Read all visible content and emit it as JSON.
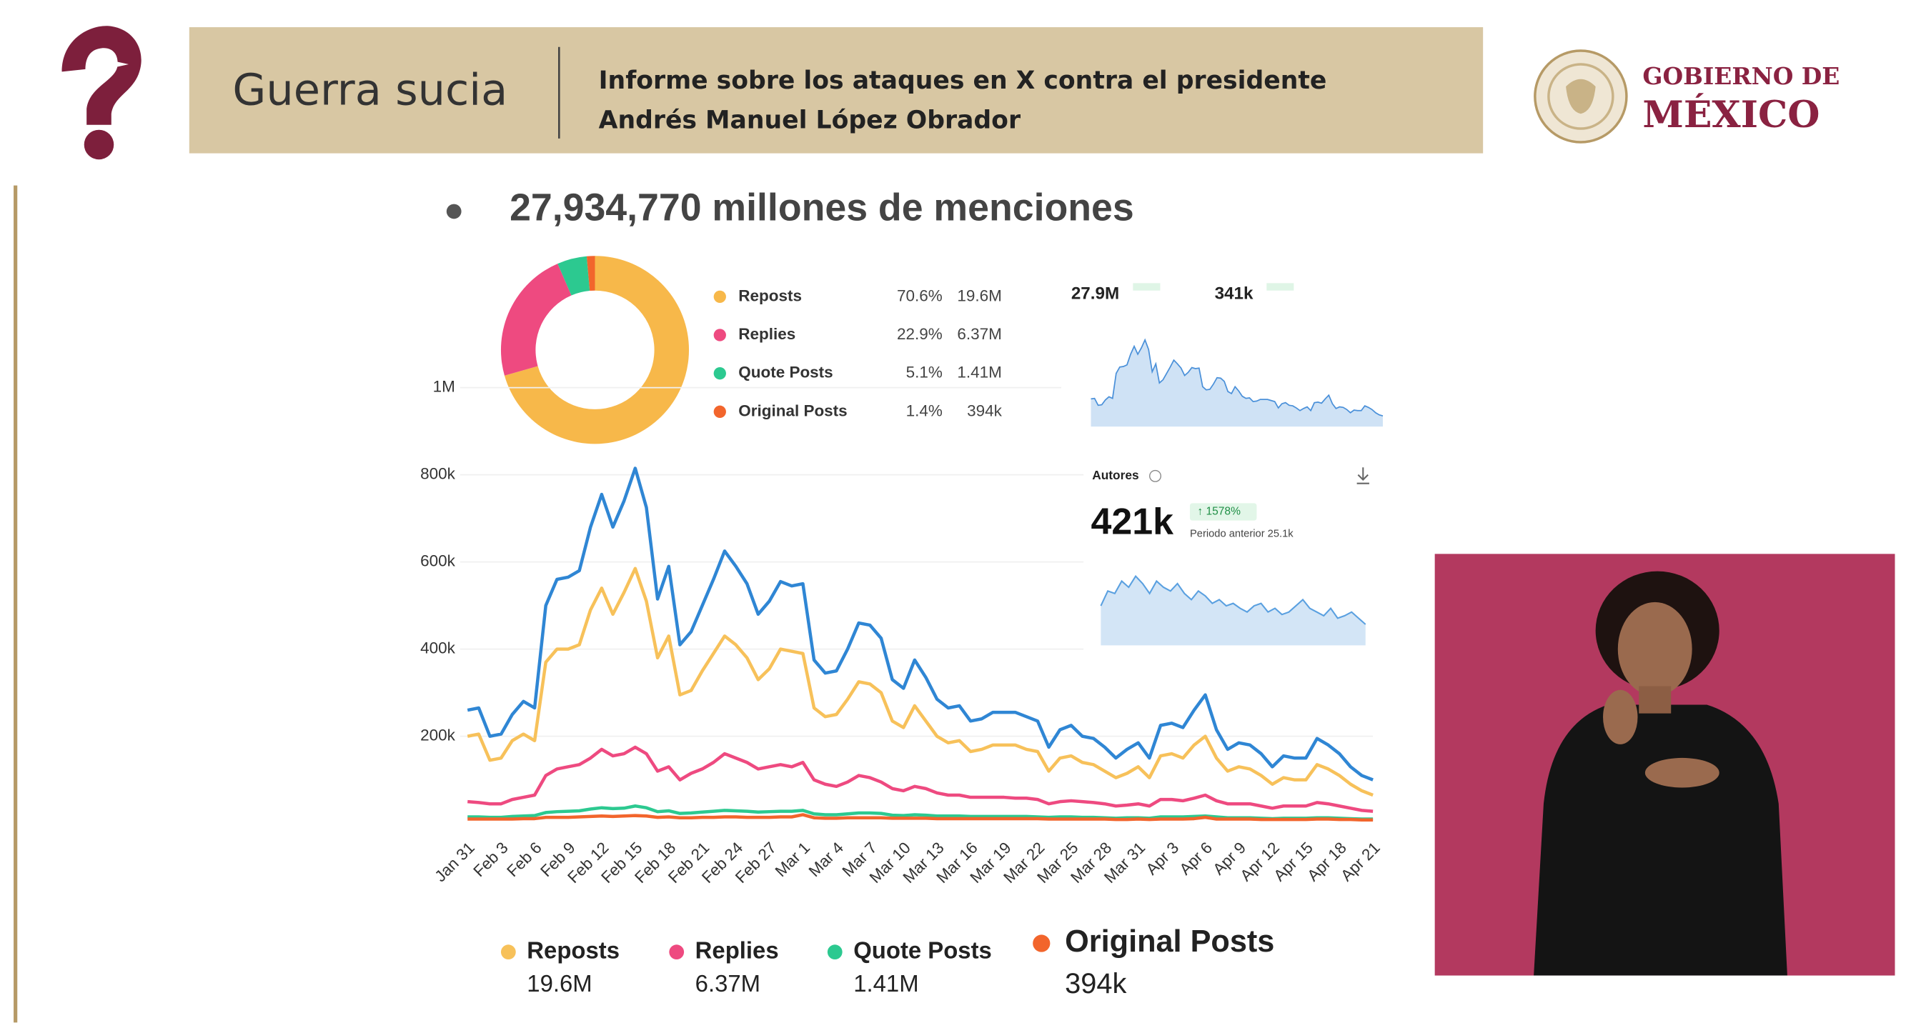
{
  "header": {
    "section": "Guerra sucia",
    "lines": [
      "Informe sobre los ataques en X contra el presidente",
      "Andrés Manuel López Obrador"
    ]
  },
  "logo": {
    "line1": "GOBIERNO DE",
    "line2": "MÉXICO"
  },
  "heading": "27,934,770 millones de menciones",
  "summary": {
    "mentions": "27.9M",
    "daily_average": "341k"
  },
  "authors": {
    "label": "Autores",
    "total": "421k",
    "change": "↑ 1578%",
    "previous": "Periodo anterior 25.1k"
  },
  "chart_data": [
    {
      "type": "pie",
      "donut": true,
      "categories": [
        "Reposts",
        "Replies",
        "Quote Posts",
        "Original Posts"
      ],
      "values": [
        70.6,
        22.9,
        5.1,
        1.4
      ],
      "value_labels": [
        "70.6%",
        "22.9%",
        "5.1%",
        "1.4%"
      ],
      "totals": [
        "19.6M",
        "6.37M",
        "1.41M",
        "394k"
      ],
      "colors": [
        "#f7b84a",
        "#ee4a80",
        "#2cc990",
        "#f2652c"
      ]
    },
    {
      "type": "line",
      "legend": "bottom",
      "grid": true,
      "ylim": [
        0,
        1000000
      ],
      "yticks": [
        {
          "value": 200000,
          "label": "200k"
        },
        {
          "value": 400000,
          "label": "400k"
        },
        {
          "value": 600000,
          "label": "600k"
        },
        {
          "value": 800000,
          "label": "800k"
        },
        {
          "value": 1000000,
          "label": "1M"
        }
      ],
      "categories": [
        "Jan 31",
        null,
        null,
        "Feb 3",
        null,
        null,
        "Feb 6",
        null,
        null,
        "Feb 9",
        null,
        null,
        "Feb 12",
        null,
        null,
        "Feb 15",
        null,
        null,
        "Feb 18",
        null,
        null,
        "Feb 21",
        null,
        null,
        "Feb 24",
        null,
        null,
        "Feb 27",
        null,
        null,
        "Mar 1",
        null,
        null,
        "Mar 4",
        null,
        null,
        "Mar 7",
        null,
        null,
        "Mar 10",
        null,
        null,
        "Mar 13",
        null,
        null,
        "Mar 16",
        null,
        null,
        "Mar 19",
        null,
        null,
        "Mar 22",
        null,
        null,
        "Mar 25",
        null,
        null,
        "Mar 28",
        null,
        null,
        "Mar 31",
        null,
        null,
        "Apr 3",
        null,
        null,
        "Apr 6",
        null,
        null,
        "Apr 9",
        null,
        null,
        "Apr 12",
        null,
        null,
        "Apr 15",
        null,
        null,
        "Apr 18",
        null,
        null,
        "Apr 21"
      ],
      "series": [
        {
          "name": "Reposts",
          "color": "#f7c15a",
          "values": [
            200000,
            205000,
            145000,
            150000,
            190000,
            205000,
            190000,
            370000,
            400000,
            400000,
            410000,
            490000,
            540000,
            480000,
            530000,
            585000,
            510000,
            380000,
            430000,
            295000,
            305000,
            350000,
            390000,
            430000,
            410000,
            380000,
            330000,
            355000,
            400000,
            395000,
            390000,
            265000,
            245000,
            250000,
            285000,
            325000,
            320000,
            300000,
            235000,
            220000,
            270000,
            235000,
            200000,
            185000,
            190000,
            165000,
            170000,
            180000,
            180000,
            180000,
            170000,
            165000,
            120000,
            150000,
            155000,
            140000,
            135000,
            120000,
            105000,
            115000,
            130000,
            105000,
            155000,
            160000,
            150000,
            180000,
            200000,
            150000,
            120000,
            130000,
            125000,
            110000,
            90000,
            105000,
            100000,
            100000,
            135000,
            125000,
            110000,
            90000,
            75000,
            65000
          ]
        },
        {
          "name": "Replies",
          "color": "#ee4a80",
          "values": [
            50000,
            48000,
            45000,
            45000,
            55000,
            60000,
            65000,
            110000,
            125000,
            130000,
            135000,
            150000,
            170000,
            155000,
            160000,
            175000,
            160000,
            120000,
            130000,
            100000,
            115000,
            125000,
            140000,
            160000,
            150000,
            140000,
            125000,
            130000,
            135000,
            130000,
            140000,
            100000,
            90000,
            85000,
            95000,
            110000,
            105000,
            95000,
            80000,
            75000,
            85000,
            80000,
            70000,
            65000,
            65000,
            60000,
            60000,
            60000,
            60000,
            58000,
            58000,
            55000,
            45000,
            50000,
            52000,
            50000,
            48000,
            45000,
            40000,
            42000,
            45000,
            40000,
            55000,
            55000,
            52000,
            58000,
            65000,
            52000,
            45000,
            45000,
            45000,
            40000,
            35000,
            40000,
            40000,
            40000,
            48000,
            45000,
            40000,
            35000,
            30000,
            28000
          ]
        },
        {
          "name": "Quote Posts",
          "color": "#2cc990",
          "values": [
            15000,
            15000,
            14000,
            14000,
            16000,
            17000,
            18000,
            25000,
            27000,
            28000,
            29000,
            33000,
            36000,
            34000,
            35000,
            40000,
            36000,
            27000,
            29000,
            23000,
            24000,
            26000,
            28000,
            30000,
            29000,
            28000,
            26000,
            27000,
            28000,
            28000,
            30000,
            22000,
            20000,
            20000,
            22000,
            24000,
            24000,
            23000,
            19000,
            18000,
            20000,
            19000,
            17000,
            17000,
            17000,
            16000,
            16000,
            16000,
            16000,
            16000,
            16000,
            15000,
            14000,
            15000,
            15000,
            14000,
            14000,
            13000,
            12000,
            13000,
            13000,
            12000,
            15000,
            15000,
            15000,
            16000,
            17000,
            15000,
            13000,
            13000,
            13000,
            12000,
            11000,
            12000,
            12000,
            12000,
            13000,
            13000,
            12000,
            11000,
            10000,
            10000
          ]
        },
        {
          "name": "Original Posts",
          "color": "#f2652c",
          "values": [
            10000,
            10000,
            10000,
            10000,
            10000,
            11000,
            11000,
            14000,
            14000,
            14000,
            15000,
            16000,
            17000,
            16000,
            17000,
            18000,
            17000,
            14000,
            15000,
            13000,
            13000,
            14000,
            14000,
            15000,
            15000,
            14000,
            14000,
            14000,
            15000,
            15000,
            20000,
            13000,
            12000,
            12000,
            13000,
            13000,
            13000,
            13000,
            12000,
            12000,
            12000,
            12000,
            11000,
            11000,
            11000,
            11000,
            11000,
            11000,
            11000,
            11000,
            11000,
            11000,
            10000,
            10000,
            10000,
            10000,
            10000,
            10000,
            9000,
            9000,
            10000,
            9000,
            10000,
            10000,
            10000,
            11000,
            14000,
            10000,
            10000,
            10000,
            10000,
            9000,
            9000,
            9000,
            9000,
            9000,
            10000,
            10000,
            9000,
            9000,
            8000,
            8000
          ]
        },
        {
          "color": "#2f86d4",
          "values": [
            260000,
            265000,
            200000,
            205000,
            250000,
            280000,
            265000,
            500000,
            560000,
            565000,
            580000,
            680000,
            755000,
            680000,
            740000,
            815000,
            725000,
            515000,
            590000,
            410000,
            440000,
            500000,
            560000,
            625000,
            590000,
            550000,
            480000,
            510000,
            555000,
            545000,
            550000,
            375000,
            345000,
            350000,
            400000,
            460000,
            455000,
            425000,
            330000,
            310000,
            375000,
            335000,
            285000,
            265000,
            270000,
            235000,
            240000,
            255000,
            255000,
            255000,
            245000,
            235000,
            175000,
            215000,
            225000,
            200000,
            195000,
            175000,
            150000,
            170000,
            185000,
            150000,
            225000,
            230000,
            220000,
            260000,
            295000,
            215000,
            170000,
            185000,
            180000,
            160000,
            130000,
            155000,
            150000,
            150000,
            195000,
            180000,
            160000,
            130000,
            110000,
            100000
          ]
        }
      ]
    },
    {
      "type": "area",
      "color": "#5aa0e0",
      "ylim": [
        0,
        60
      ],
      "values": [
        32,
        44,
        42,
        52,
        47,
        56,
        50,
        42,
        52,
        47,
        44,
        50,
        42,
        37,
        44,
        40,
        34,
        37,
        32,
        34,
        30,
        27,
        32,
        34,
        27,
        30,
        25,
        27,
        32,
        37,
        30,
        27,
        24,
        30,
        22,
        24,
        27,
        22,
        17
      ]
    }
  ]
}
